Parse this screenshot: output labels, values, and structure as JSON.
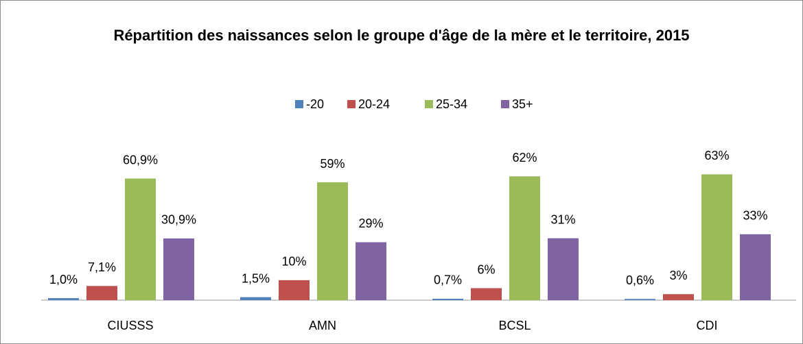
{
  "chart_data": {
    "type": "bar",
    "title": "Répartition des naissances selon le groupe d'âge de la mère et le territoire, 2015",
    "categories": [
      "CIUSSS",
      "AMN",
      "BCSL",
      "CDI"
    ],
    "series": [
      {
        "name": "-20",
        "color": "#4f81bd",
        "values": [
          1.0,
          1.5,
          0.7,
          0.6
        ],
        "value_labels": [
          "1,0%",
          "1,5%",
          "0,7%",
          "0,6%"
        ]
      },
      {
        "name": "20-24",
        "color": "#c0504d",
        "values": [
          7.1,
          10,
          6,
          3
        ],
        "value_labels": [
          "7,1%",
          "10%",
          "6%",
          "3%"
        ]
      },
      {
        "name": "25-34",
        "color": "#9bbb59",
        "values": [
          60.9,
          59,
          62,
          63
        ],
        "value_labels": [
          "60,9%",
          "59%",
          "62%",
          "63%"
        ]
      },
      {
        "name": "35+",
        "color": "#8064a2",
        "values": [
          30.9,
          29,
          31,
          33
        ],
        "value_labels": [
          "30,9%",
          "29%",
          "31%",
          "33%"
        ]
      }
    ],
    "ylim": [
      0,
      70
    ],
    "legend": "top"
  }
}
